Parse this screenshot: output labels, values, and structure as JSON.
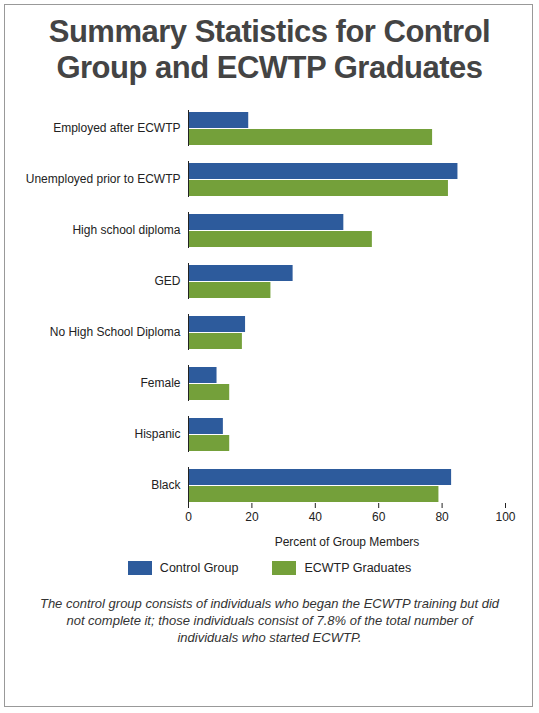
{
  "chart_data": {
    "type": "bar",
    "orientation": "horizontal",
    "title": "Summary Statistics for Control Group and ECWTP Graduates",
    "xlabel": "Percent of Group Members",
    "caption": "The control group consists of individuals who began the ECWTP training but did not complete it; those individuals consist of 7.8% of the total number of individuals who started ECWTP.",
    "categories": [
      "Employed after ECWTP",
      "Unemployed prior to ECWTP",
      "High school diploma",
      "GED",
      "No High School Diploma",
      "Female",
      "Hispanic",
      "Black"
    ],
    "series": [
      {
        "name": "Control Group",
        "color": "#2d5b9c",
        "values": [
          19,
          85,
          49,
          33,
          18,
          9,
          11,
          83
        ]
      },
      {
        "name": "ECWTP Graduates",
        "color": "#74a03a",
        "values": [
          77,
          82,
          58,
          26,
          17,
          13,
          13,
          79
        ]
      }
    ],
    "xlim": [
      0,
      100
    ],
    "xticks": [
      0,
      20,
      40,
      60,
      80,
      100
    ],
    "grid": false,
    "legend": "bottom"
  }
}
